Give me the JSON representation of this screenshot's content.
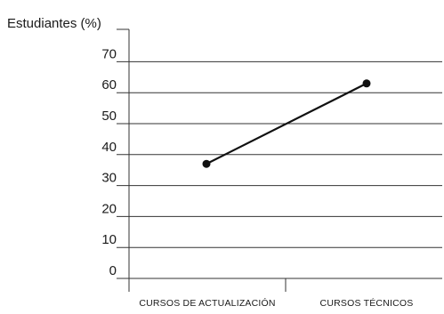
{
  "chart_data": {
    "type": "line",
    "title": "",
    "ylabel": "Estudiantes (%)",
    "xlabel": "",
    "categories": [
      "CURSOS DE ACTUALIZACIÓN",
      "CURSOS TÉCNICOS"
    ],
    "series": [
      {
        "values": [
          37,
          63
        ]
      }
    ],
    "ylim": [
      0,
      80
    ],
    "yticks": [
      0,
      10,
      20,
      30,
      40,
      50,
      60,
      70
    ],
    "grid": true,
    "legend": "none",
    "colors": {
      "line": "#111111",
      "grid": "#333333",
      "text": "#1a1a1a"
    }
  }
}
